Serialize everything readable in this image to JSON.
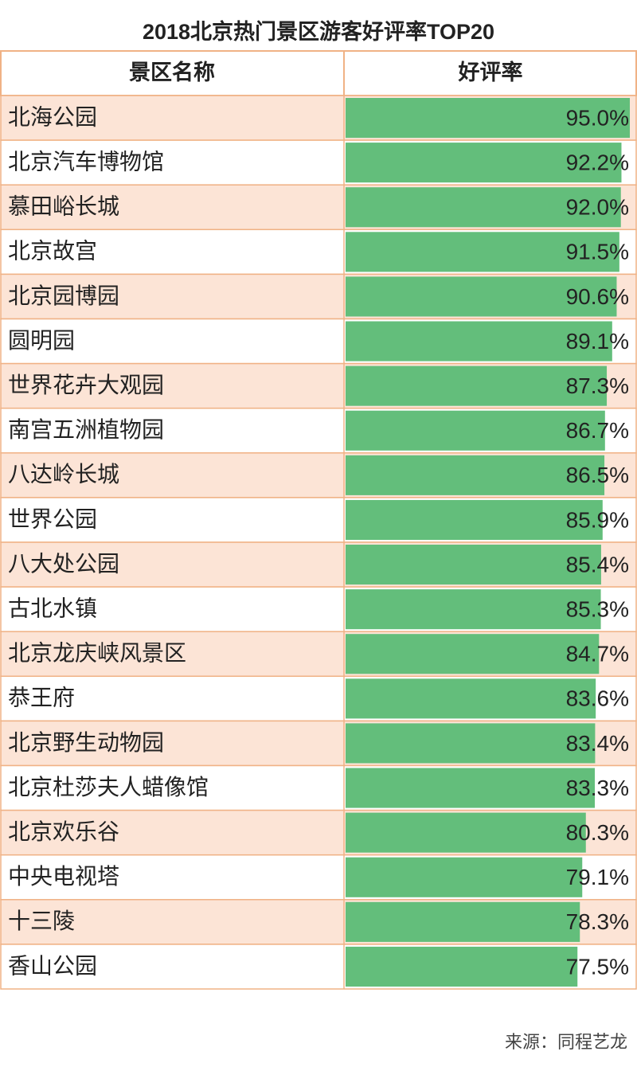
{
  "chart_data": {
    "type": "bar",
    "title": "2018北京热门景区游客好评率TOP20",
    "column_headers": [
      "景区名称",
      "好评率"
    ],
    "categories": [
      "北海公园",
      "北京汽车博物馆",
      "慕田峪长城",
      "北京故宫",
      "北京园博园",
      "圆明园",
      "世界花卉大观园",
      "南宫五洲植物园",
      "八达岭长城",
      "世界公园",
      "八大处公园",
      "古北水镇",
      "北京龙庆峡风景区",
      "恭王府",
      "北京野生动物园",
      "北京杜莎夫人蜡像馆",
      "北京欢乐谷",
      "中央电视塔",
      "十三陵",
      "香山公园"
    ],
    "values": [
      95.0,
      92.2,
      92.0,
      91.5,
      90.6,
      89.1,
      87.3,
      86.7,
      86.5,
      85.9,
      85.4,
      85.3,
      84.7,
      83.6,
      83.4,
      83.3,
      80.3,
      79.1,
      78.3,
      77.5
    ],
    "value_labels": [
      "95.0%",
      "92.2%",
      "92.0%",
      "91.5%",
      "90.6%",
      "89.1%",
      "87.3%",
      "86.7%",
      "86.5%",
      "85.9%",
      "85.4%",
      "85.3%",
      "84.7%",
      "83.6%",
      "83.4%",
      "83.3%",
      "80.3%",
      "79.1%",
      "78.3%",
      "77.5%"
    ],
    "color": "#63be7b",
    "source": "来源：同程艺龙"
  }
}
